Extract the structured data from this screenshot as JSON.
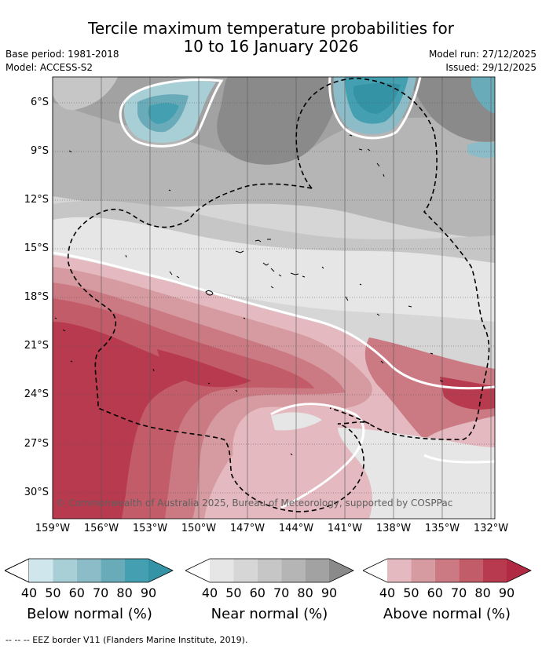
{
  "header": {
    "title_line1": "Tercile maximum temperature probabilities for",
    "title_line2": "10 to 16 January 2026",
    "base_period": "Base period: 1981-2018",
    "model": "Model: ACCESS-S2",
    "model_run": "Model run: 27/12/2025",
    "issued": "Issued: 29/12/2025"
  },
  "axes": {
    "lat_labels": [
      "6°S",
      "9°S",
      "12°S",
      "15°S",
      "18°S",
      "21°S",
      "24°S",
      "27°S",
      "30°S"
    ],
    "lon_labels": [
      "159°W",
      "156°W",
      "153°W",
      "150°W",
      "147°W",
      "144°W",
      "141°W",
      "138°W",
      "135°W",
      "132°W"
    ]
  },
  "map": {
    "copyright": "© Commonwealth of Australia 2025, Bureau of Meteorology, supported by COSPPac",
    "colors": {
      "ocean_frame": "#ffffff",
      "coast": "#000000",
      "eez": "#000000",
      "grid": "#555555"
    }
  },
  "legends": [
    {
      "label": "Below normal (%)",
      "ticks": [
        "40",
        "50",
        "60",
        "70",
        "80",
        "90"
      ],
      "colors": [
        "#cfe7ec",
        "#a9cfd6",
        "#8bbcc7",
        "#6aabb9",
        "#44a0b1"
      ],
      "arrow": "#3593a6"
    },
    {
      "label": "Near normal (%)",
      "ticks": [
        "40",
        "50",
        "60",
        "70",
        "80",
        "90"
      ],
      "colors": [
        "#e6e6e6",
        "#d6d6d6",
        "#c6c6c6",
        "#b5b5b5",
        "#a2a2a2"
      ],
      "arrow": "#8a8a8a"
    },
    {
      "label": "Above normal (%)",
      "ticks": [
        "40",
        "50",
        "60",
        "70",
        "80",
        "90"
      ],
      "colors": [
        "#e4b9bf",
        "#d69aa1",
        "#cb7a83",
        "#c35c69",
        "#b83a4e"
      ],
      "arrow": "#b02a43"
    }
  ],
  "footer": {
    "eez_note": "--  --  -- EEZ border V11 (Flanders Marine Institute, 2019)."
  }
}
